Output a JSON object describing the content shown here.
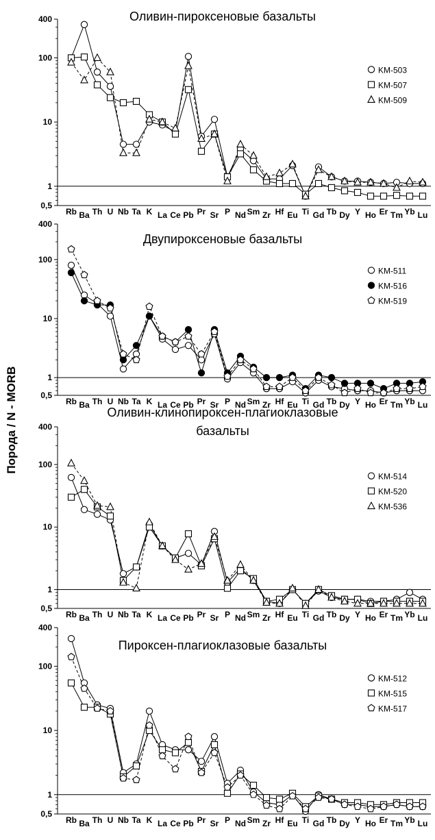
{
  "ylabel": "Порода / N - MORB",
  "chart_data": [
    {
      "type": "line",
      "title": [
        "Оливин-пироксеновые базальты"
      ],
      "xlabel": "",
      "ylabel": "Порода / N - MORB",
      "yscale": "log",
      "ylim": [
        0.5,
        400
      ],
      "yticks": [
        {
          "v": 400,
          "label": "400"
        },
        {
          "v": 100,
          "label": "100"
        },
        {
          "v": 10,
          "label": "10"
        },
        {
          "v": 1,
          "label": "1"
        },
        {
          "v": 0.5,
          "label": "0,5"
        }
      ],
      "reference_line": 1,
      "categories": [
        "Rb",
        "Ba",
        "Th",
        "U",
        "Nb",
        "Ta",
        "K",
        "La",
        "Ce",
        "Pb",
        "Pr",
        "Sr",
        "P",
        "Nd",
        "Sm",
        "Zr",
        "Hf",
        "Eu",
        "Ti",
        "Gd",
        "Tb",
        "Dy",
        "Y",
        "Ho",
        "Er",
        "Tm",
        "Yb",
        "Lu"
      ],
      "series": [
        {
          "name": "KM-503",
          "marker": "circle",
          "fill": "none",
          "dash": false,
          "values": [
            100,
            330,
            60,
            36,
            4.5,
            4.5,
            10,
            9,
            7,
            105,
            6,
            11,
            1.4,
            3.8,
            2.5,
            1.3,
            1.3,
            2.1,
            0.7,
            2,
            1.4,
            1.2,
            1.2,
            1.15,
            1.1,
            1.15,
            1.1,
            1.1
          ]
        },
        {
          "name": "KM-507",
          "marker": "square",
          "fill": "none",
          "dash": false,
          "values": [
            100,
            103,
            38,
            24,
            20,
            21,
            13,
            10,
            6.5,
            32,
            3.5,
            6.5,
            1.4,
            3.2,
            1.8,
            1.2,
            1.1,
            1.1,
            0.75,
            1.1,
            0.95,
            0.85,
            0.8,
            0.7,
            0.7,
            0.72,
            0.7,
            0.7
          ]
        },
        {
          "name": "KM-509",
          "marker": "triangle",
          "fill": "none",
          "dash": true,
          "values": [
            85,
            45,
            100,
            60,
            3.3,
            3.3,
            11,
            10,
            8,
            75,
            5.5,
            6.5,
            1.2,
            4.5,
            3,
            1.4,
            1.6,
            2.2,
            0.7,
            1.8,
            1.4,
            1.2,
            1.15,
            1.15,
            1.1,
            0.95,
            1.2,
            1.15
          ]
        }
      ]
    },
    {
      "type": "line",
      "title": [
        "Двупироксеновые базальты"
      ],
      "xlabel": "",
      "ylabel": "Порода / N - MORB",
      "yscale": "log",
      "ylim": [
        0.5,
        400
      ],
      "yticks": [
        {
          "v": 400,
          "label": "400"
        },
        {
          "v": 100,
          "label": "100"
        },
        {
          "v": 10,
          "label": "10"
        },
        {
          "v": 1,
          "label": "1"
        },
        {
          "v": 0.5,
          "label": "0,5"
        }
      ],
      "reference_line": 1,
      "categories": [
        "Rb",
        "Ba",
        "Th",
        "U",
        "Nb",
        "Ta",
        "K",
        "La",
        "Ce",
        "Pb",
        "Pr",
        "Sr",
        "P",
        "Nd",
        "Sm",
        "Zr",
        "Hf",
        "Eu",
        "Ti",
        "Gd",
        "Tb",
        "Dy",
        "Y",
        "Ho",
        "Er",
        "Tm",
        "Yb",
        "Lu"
      ],
      "series": [
        {
          "name": "KM-511",
          "marker": "circle",
          "fill": "none",
          "dash": false,
          "values": [
            80,
            25,
            18,
            11,
            1.4,
            2.5,
            11,
            4.5,
            3,
            3.5,
            2,
            5.5,
            0.95,
            1.8,
            1.2,
            0.65,
            0.65,
            0.85,
            0.55,
            0.9,
            0.7,
            0.65,
            0.6,
            0.6,
            0.55,
            0.6,
            0.6,
            0.6
          ]
        },
        {
          "name": "KM-516",
          "marker": "circle",
          "fill": "black",
          "dash": false,
          "values": [
            60,
            20,
            17,
            17,
            2,
            3.5,
            11,
            5,
            4,
            6.5,
            1.2,
            6.5,
            1.2,
            2.3,
            1.5,
            1,
            1,
            1.1,
            0.65,
            1.1,
            1,
            0.8,
            0.8,
            0.8,
            0.65,
            0.8,
            0.8,
            0.85
          ]
        },
        {
          "name": "KM-519",
          "marker": "pentagon",
          "fill": "none",
          "dash": true,
          "values": [
            150,
            55,
            20,
            15,
            2.5,
            2,
            16,
            5,
            4,
            5,
            2.5,
            6,
            1.05,
            2,
            1.4,
            0.7,
            0.7,
            1,
            0.6,
            1,
            0.75,
            0.55,
            0.65,
            0.55,
            0.55,
            0.65,
            0.65,
            0.7
          ]
        }
      ]
    },
    {
      "type": "line",
      "title": [
        "Оливин-клинопироксен-плагиоклазовые",
        "базальты"
      ],
      "xlabel": "",
      "ylabel": "Порода / N - MORB",
      "yscale": "log",
      "ylim": [
        0.5,
        400
      ],
      "yticks": [
        {
          "v": 400,
          "label": "400"
        },
        {
          "v": 100,
          "label": "100"
        },
        {
          "v": 10,
          "label": "10"
        },
        {
          "v": 1,
          "label": "1"
        },
        {
          "v": 0.5,
          "label": "0,5"
        }
      ],
      "reference_line": 1,
      "categories": [
        "Rb",
        "Ba",
        "Th",
        "U",
        "Nb",
        "Ta",
        "K",
        "La",
        "Ce",
        "Pb",
        "Pr",
        "Sr",
        "P",
        "Nd",
        "Sm",
        "Zr",
        "Hf",
        "Eu",
        "Ti",
        "Gd",
        "Tb",
        "Dy",
        "Y",
        "Ho",
        "Er",
        "Tm",
        "Yb",
        "Lu"
      ],
      "series": [
        {
          "name": "KM-514",
          "marker": "circle",
          "fill": "none",
          "dash": false,
          "values": [
            62,
            19,
            16,
            13,
            1.8,
            2.3,
            11,
            5,
            3.2,
            3.8,
            2.5,
            8.5,
            1.3,
            2.2,
            1.4,
            0.65,
            0.6,
            1,
            0.6,
            0.95,
            0.75,
            0.7,
            0.7,
            0.65,
            0.65,
            0.7,
            0.9,
            0.7
          ]
        },
        {
          "name": "KM-520",
          "marker": "square",
          "fill": "none",
          "dash": false,
          "values": [
            30,
            40,
            21,
            15,
            1.4,
            2.3,
            10,
            5,
            3.2,
            7.8,
            2.4,
            6.5,
            1.05,
            2,
            1.5,
            0.65,
            0.7,
            1,
            0.6,
            1,
            0.8,
            0.7,
            0.7,
            0.6,
            0.65,
            0.65,
            0.65,
            0.65
          ]
        },
        {
          "name": "KM-536",
          "marker": "triangle",
          "fill": "none",
          "dash": true,
          "values": [
            105,
            55,
            22,
            21,
            1.3,
            1.05,
            12,
            5,
            3,
            2.1,
            2.6,
            7,
            1.4,
            2.5,
            1.4,
            0.62,
            0.6,
            1.05,
            0.55,
            1,
            0.75,
            0.65,
            0.6,
            0.6,
            0.6,
            0.6,
            0.6,
            0.6
          ]
        }
      ]
    },
    {
      "type": "line",
      "title": [
        "Пироксен-плагиоклазовые базальты"
      ],
      "xlabel": "",
      "ylabel": "Порода / N - MORB",
      "yscale": "log",
      "ylim": [
        0.5,
        400
      ],
      "yticks": [
        {
          "v": 400,
          "label": "400"
        },
        {
          "v": 100,
          "label": "100"
        },
        {
          "v": 10,
          "label": "10"
        },
        {
          "v": 1,
          "label": "1"
        },
        {
          "v": 0.5,
          "label": "0,5"
        }
      ],
      "reference_line": 1,
      "categories": [
        "Rb",
        "Ba",
        "Th",
        "U",
        "Nb",
        "Ta",
        "K",
        "La",
        "Ce",
        "Pb",
        "Pr",
        "Sr",
        "P",
        "Nd",
        "Sm",
        "Zr",
        "Hf",
        "Eu",
        "Ti",
        "Gd",
        "Tb",
        "Dy",
        "Y",
        "Ho",
        "Er",
        "Tm",
        "Yb",
        "Lu"
      ],
      "series": [
        {
          "name": "KM-512",
          "marker": "circle",
          "fill": "none",
          "dash": false,
          "values": [
            270,
            55,
            25,
            22,
            2.2,
            3,
            20,
            6,
            5,
            5,
            3.3,
            8,
            1.5,
            2.4,
            1.1,
            0.75,
            0.7,
            1,
            0.55,
            1,
            0.85,
            0.7,
            0.7,
            0.65,
            0.65,
            0.7,
            0.65,
            0.65
          ]
        },
        {
          "name": "KM-515",
          "marker": "square",
          "fill": "none",
          "dash": false,
          "values": [
            55,
            23,
            23,
            18,
            1.9,
            2.8,
            10,
            5,
            4.5,
            6.5,
            2.3,
            6,
            1.05,
            2.1,
            1.4,
            0.9,
            0.85,
            1.05,
            0.65,
            0.95,
            0.85,
            0.75,
            0.75,
            0.7,
            0.7,
            0.75,
            0.75,
            0.75
          ]
        },
        {
          "name": "KM-517",
          "marker": "pentagon",
          "fill": "none",
          "dash": true,
          "values": [
            140,
            45,
            22,
            20,
            1.8,
            1.7,
            12,
            4,
            2.5,
            8,
            2.2,
            4.5,
            1.3,
            2,
            1,
            0.68,
            0.6,
            0.95,
            0.6,
            0.9,
            0.85,
            0.7,
            0.65,
            0.6,
            0.65,
            0.7,
            0.65,
            0.65
          ]
        }
      ]
    }
  ]
}
